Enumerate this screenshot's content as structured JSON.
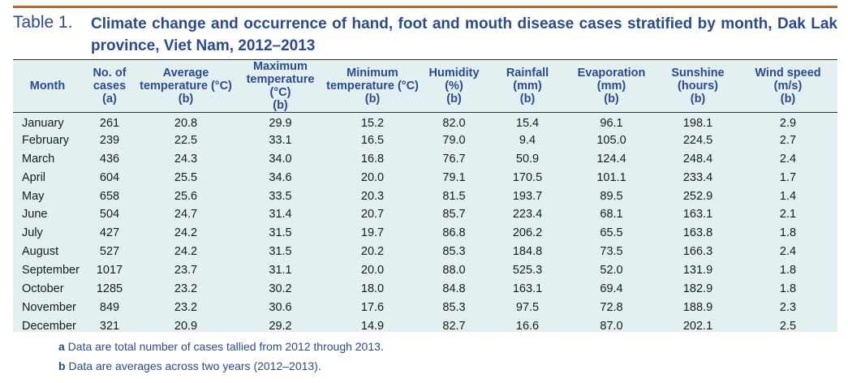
{
  "caption": {
    "label": "Table 1.",
    "title": "Climate change and occurrence of hand, foot and mouth disease cases stratified by month, Dak Lak province, Viet Nam, 2012–2013"
  },
  "columns": [
    {
      "line1": "Month",
      "line2": "",
      "line3": ""
    },
    {
      "line1": "No. of",
      "line2": "cases",
      "line3": "(a)"
    },
    {
      "line1": "Average",
      "line2": "temperature (°C)",
      "line3": "(b)"
    },
    {
      "line1": "Maximum",
      "line2": "temperature (°C)",
      "line3": "(b)"
    },
    {
      "line1": "Minimum",
      "line2": "temperature (°C)",
      "line3": "(b)"
    },
    {
      "line1": "Humidity (%)",
      "line2": "(b)",
      "line3": ""
    },
    {
      "line1": "Rainfall",
      "line2": "(mm)",
      "line3": "(b)"
    },
    {
      "line1": "Evaporation",
      "line2": "(mm)",
      "line3": "(b)"
    },
    {
      "line1": "Sunshine",
      "line2": "(hours)",
      "line3": "(b)"
    },
    {
      "line1": "Wind speed",
      "line2": "(m/s)",
      "line3": "(b)"
    }
  ],
  "rows": [
    [
      "January",
      "261",
      "20.8",
      "29.9",
      "15.2",
      "82.0",
      "15.4",
      "96.1",
      "198.1",
      "2.9"
    ],
    [
      "February",
      "239",
      "22.5",
      "33.1",
      "16.5",
      "79.0",
      "9.4",
      "105.0",
      "224.5",
      "2.7"
    ],
    [
      "March",
      "436",
      "24.3",
      "34.0",
      "16.8",
      "76.7",
      "50.9",
      "124.4",
      "248.4",
      "2.4"
    ],
    [
      "April",
      "604",
      "25.5",
      "34.6",
      "20.0",
      "79.1",
      "170.5",
      "101.1",
      "233.4",
      "1.7"
    ],
    [
      "May",
      "658",
      "25.6",
      "33.5",
      "20.3",
      "81.5",
      "193.7",
      "89.5",
      "252.9",
      "1.4"
    ],
    [
      "June",
      "504",
      "24.7",
      "31.4",
      "20.7",
      "85.7",
      "223.4",
      "68.1",
      "163.1",
      "2.1"
    ],
    [
      "July",
      "427",
      "24.2",
      "31.5",
      "19.7",
      "86.8",
      "206.2",
      "65.5",
      "163.8",
      "1.8"
    ],
    [
      "August",
      "527",
      "24.2",
      "31.5",
      "20.2",
      "85.3",
      "184.8",
      "73.5",
      "166.3",
      "2.4"
    ],
    [
      "September",
      "1017",
      "23.7",
      "31.1",
      "20.0",
      "88.0",
      "525.3",
      "52.0",
      "131.9",
      "1.8"
    ],
    [
      "October",
      "1285",
      "23.2",
      "30.2",
      "18.0",
      "84.8",
      "163.1",
      "69.4",
      "182.9",
      "1.8"
    ],
    [
      "November",
      "849",
      "23.2",
      "30.6",
      "17.6",
      "85.3",
      "97.5",
      "72.8",
      "188.9",
      "2.3"
    ],
    [
      "December",
      "321",
      "20.9",
      "29.2",
      "14.9",
      "82.7",
      "16.6",
      "87.0",
      "202.1",
      "2.5"
    ]
  ],
  "footnotes": [
    {
      "marker": "a",
      "text": " Data are total number of cases tallied from 2012 through 2013."
    },
    {
      "marker": "b",
      "text": " Data are averages across two years (2012–2013)."
    }
  ],
  "colors": {
    "accent_line": "#b8682e",
    "heading_text": "#2b4a8f",
    "table_background": "#e3f0f1"
  }
}
